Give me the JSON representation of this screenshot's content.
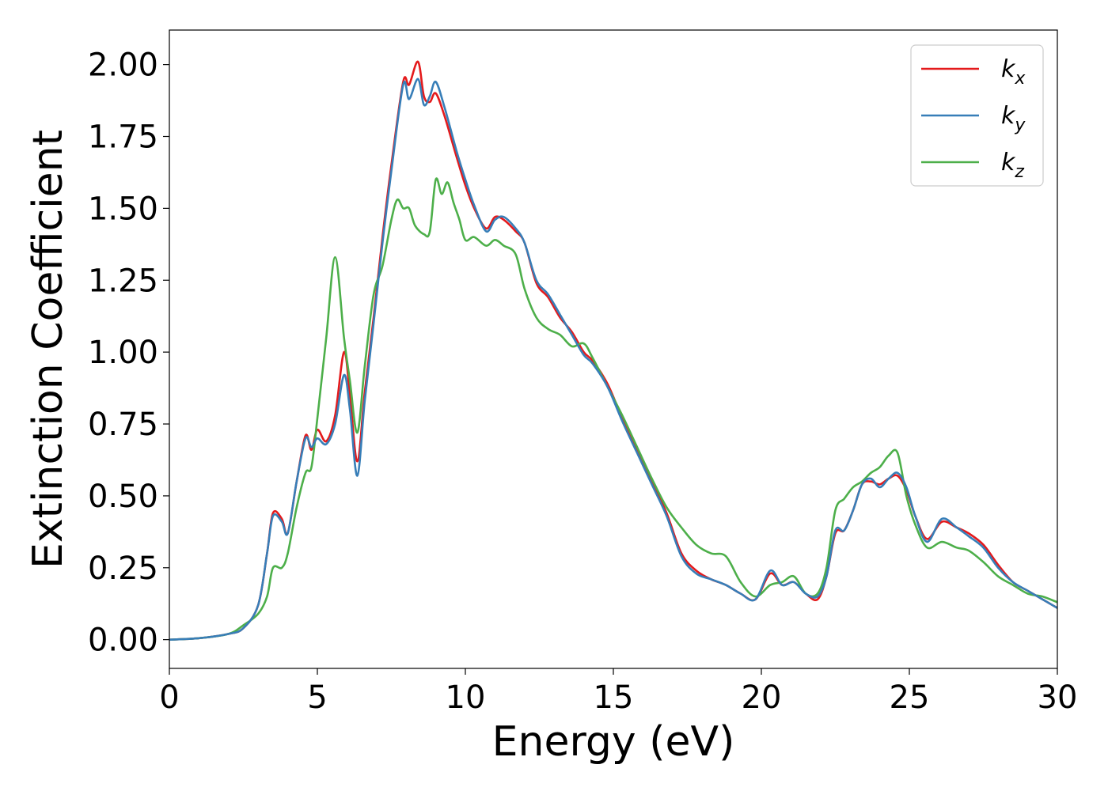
{
  "chart_data": {
    "type": "line",
    "title": "",
    "xlabel": "Energy (eV)",
    "ylabel": "Extinction Coefficient",
    "xlim": [
      0,
      30
    ],
    "ylim": [
      -0.1,
      2.12
    ],
    "xticks": [
      0,
      5,
      10,
      15,
      20,
      25,
      30
    ],
    "xtick_labels": [
      "0",
      "5",
      "10",
      "15",
      "20",
      "25",
      "30"
    ],
    "yticks": [
      0.0,
      0.25,
      0.5,
      0.75,
      1.0,
      1.25,
      1.5,
      1.75,
      2.0
    ],
    "ytick_labels": [
      "0.00",
      "0.25",
      "0.50",
      "0.75",
      "1.00",
      "1.25",
      "1.50",
      "1.75",
      "2.00"
    ],
    "grid": false,
    "legend_position": "top-right",
    "series": [
      {
        "name": "k",
        "subscript": "x",
        "color": "#e41a1c",
        "x": [
          0,
          1,
          2,
          2.5,
          3,
          3.3,
          3.5,
          3.8,
          4,
          4.3,
          4.6,
          4.8,
          5,
          5.3,
          5.6,
          5.9,
          6.1,
          6.35,
          6.6,
          6.9,
          7.2,
          7.5,
          7.9,
          8.1,
          8.4,
          8.6,
          8.8,
          9,
          9.3,
          9.7,
          10,
          10.3,
          10.7,
          11,
          11.3,
          11.7,
          12,
          12.4,
          12.8,
          13.2,
          13.6,
          14,
          14.3,
          14.8,
          15.3,
          15.8,
          16.3,
          16.8,
          17.3,
          17.8,
          18.3,
          18.8,
          19.3,
          19.8,
          20.3,
          20.7,
          21.1,
          21.5,
          21.9,
          22.2,
          22.5,
          22.8,
          23.1,
          23.4,
          23.7,
          24,
          24.3,
          24.6,
          24.9,
          25.2,
          25.6,
          26.1,
          26.6,
          27,
          27.5,
          28,
          28.5,
          29,
          29.5,
          30
        ],
        "y": [
          0,
          0.005,
          0.02,
          0.04,
          0.12,
          0.3,
          0.44,
          0.42,
          0.37,
          0.55,
          0.71,
          0.66,
          0.73,
          0.69,
          0.78,
          1.0,
          0.85,
          0.62,
          0.86,
          1.12,
          1.4,
          1.65,
          1.94,
          1.93,
          2.01,
          1.89,
          1.87,
          1.9,
          1.82,
          1.68,
          1.58,
          1.5,
          1.43,
          1.47,
          1.46,
          1.42,
          1.38,
          1.24,
          1.19,
          1.12,
          1.07,
          1.0,
          0.97,
          0.89,
          0.77,
          0.66,
          0.55,
          0.44,
          0.3,
          0.24,
          0.21,
          0.19,
          0.16,
          0.14,
          0.23,
          0.19,
          0.2,
          0.16,
          0.14,
          0.22,
          0.37,
          0.38,
          0.45,
          0.54,
          0.55,
          0.54,
          0.56,
          0.57,
          0.52,
          0.43,
          0.35,
          0.41,
          0.39,
          0.37,
          0.33,
          0.26,
          0.2,
          0.17,
          0.14,
          0.11
        ]
      },
      {
        "name": "k",
        "subscript": "y",
        "color": "#377eb8",
        "x": [
          0,
          1,
          2,
          2.5,
          3,
          3.3,
          3.5,
          3.8,
          4,
          4.3,
          4.6,
          4.8,
          5,
          5.3,
          5.6,
          5.9,
          6.1,
          6.35,
          6.6,
          6.9,
          7.2,
          7.5,
          7.9,
          8.1,
          8.4,
          8.6,
          8.8,
          9,
          9.3,
          9.7,
          10,
          10.3,
          10.7,
          11,
          11.3,
          11.7,
          12,
          12.4,
          12.8,
          13.2,
          13.6,
          14,
          14.3,
          14.8,
          15.3,
          15.8,
          16.3,
          16.8,
          17.3,
          17.8,
          18.3,
          18.8,
          19.3,
          19.8,
          20.3,
          20.7,
          21.1,
          21.5,
          21.9,
          22.2,
          22.5,
          22.8,
          23.1,
          23.4,
          23.7,
          24,
          24.3,
          24.6,
          24.9,
          25.2,
          25.6,
          26.1,
          26.6,
          27,
          27.5,
          28,
          28.5,
          29,
          29.5,
          30
        ],
        "y": [
          0,
          0.005,
          0.02,
          0.04,
          0.12,
          0.3,
          0.43,
          0.41,
          0.37,
          0.55,
          0.7,
          0.67,
          0.7,
          0.68,
          0.75,
          0.92,
          0.8,
          0.57,
          0.83,
          1.1,
          1.38,
          1.63,
          1.93,
          1.88,
          1.95,
          1.86,
          1.89,
          1.94,
          1.85,
          1.7,
          1.6,
          1.51,
          1.42,
          1.46,
          1.47,
          1.43,
          1.38,
          1.25,
          1.2,
          1.13,
          1.06,
          0.99,
          0.96,
          0.88,
          0.76,
          0.65,
          0.54,
          0.43,
          0.29,
          0.23,
          0.21,
          0.19,
          0.16,
          0.14,
          0.24,
          0.19,
          0.2,
          0.16,
          0.15,
          0.22,
          0.38,
          0.38,
          0.45,
          0.54,
          0.56,
          0.53,
          0.56,
          0.58,
          0.53,
          0.43,
          0.34,
          0.42,
          0.39,
          0.36,
          0.32,
          0.25,
          0.2,
          0.17,
          0.14,
          0.11
        ]
      },
      {
        "name": "k",
        "subscript": "z",
        "color": "#4daf4a",
        "x": [
          0,
          1,
          2,
          2.5,
          3,
          3.3,
          3.5,
          3.8,
          4,
          4.3,
          4.6,
          4.8,
          5,
          5.3,
          5.6,
          5.9,
          6.1,
          6.35,
          6.6,
          6.9,
          7.2,
          7.5,
          7.7,
          7.9,
          8.1,
          8.3,
          8.6,
          8.8,
          9,
          9.2,
          9.4,
          9.6,
          9.8,
          10,
          10.3,
          10.7,
          11,
          11.3,
          11.7,
          12,
          12.4,
          12.8,
          13.2,
          13.6,
          14,
          14.3,
          14.8,
          15.3,
          15.8,
          16.3,
          16.8,
          17.3,
          17.8,
          18.3,
          18.8,
          19.3,
          19.8,
          20.3,
          20.7,
          21.1,
          21.5,
          21.9,
          22.2,
          22.5,
          22.8,
          23.1,
          23.4,
          23.7,
          24,
          24.3,
          24.6,
          24.9,
          25.2,
          25.6,
          26.1,
          26.6,
          27,
          27.5,
          28,
          28.5,
          29,
          29.5,
          30
        ],
        "y": [
          0,
          0.005,
          0.02,
          0.05,
          0.09,
          0.15,
          0.25,
          0.25,
          0.3,
          0.46,
          0.58,
          0.6,
          0.77,
          1.05,
          1.33,
          1.05,
          0.9,
          0.72,
          0.95,
          1.2,
          1.3,
          1.46,
          1.53,
          1.5,
          1.5,
          1.44,
          1.41,
          1.42,
          1.6,
          1.55,
          1.59,
          1.52,
          1.46,
          1.39,
          1.4,
          1.37,
          1.39,
          1.37,
          1.34,
          1.22,
          1.12,
          1.08,
          1.06,
          1.02,
          1.03,
          0.98,
          0.88,
          0.78,
          0.67,
          0.56,
          0.46,
          0.39,
          0.33,
          0.3,
          0.29,
          0.2,
          0.15,
          0.19,
          0.2,
          0.22,
          0.16,
          0.16,
          0.25,
          0.45,
          0.49,
          0.53,
          0.55,
          0.58,
          0.6,
          0.64,
          0.65,
          0.5,
          0.4,
          0.32,
          0.34,
          0.32,
          0.31,
          0.27,
          0.22,
          0.19,
          0.16,
          0.15,
          0.13
        ]
      }
    ]
  }
}
